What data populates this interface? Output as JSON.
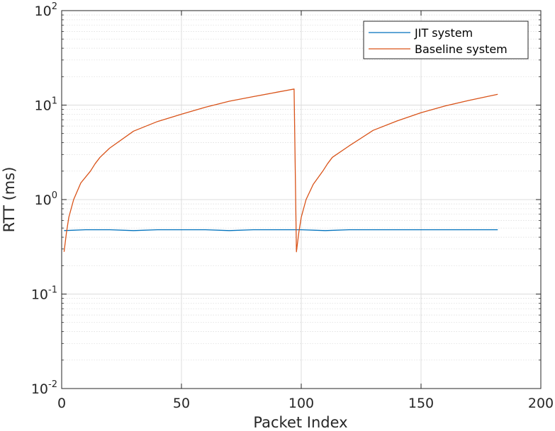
{
  "chart_data": {
    "type": "line",
    "xlabel": "Packet Index",
    "ylabel": "RTT (ms)",
    "xlim": [
      0,
      200
    ],
    "ylim": [
      0.01,
      100
    ],
    "yscale": "log",
    "grid": true,
    "minor_grid_y": true,
    "legend_position": "top-right",
    "x_ticks": [
      "0",
      "50",
      "100",
      "150",
      "200"
    ],
    "y_ticks": [
      {
        "base": "10",
        "exp": "-2",
        "value": 0.01
      },
      {
        "base": "10",
        "exp": "-1",
        "value": 0.1
      },
      {
        "base": "10",
        "exp": "0",
        "value": 1
      },
      {
        "base": "10",
        "exp": "1",
        "value": 10
      },
      {
        "base": "10",
        "exp": "2",
        "value": 100
      }
    ],
    "series": [
      {
        "name": "JIT system",
        "color": "#0072BD",
        "x": [
          1,
          10,
          20,
          30,
          40,
          50,
          60,
          70,
          80,
          90,
          100,
          110,
          120,
          130,
          140,
          150,
          160,
          170,
          182
        ],
        "y": [
          0.47,
          0.48,
          0.48,
          0.47,
          0.48,
          0.48,
          0.48,
          0.47,
          0.48,
          0.48,
          0.48,
          0.47,
          0.48,
          0.48,
          0.48,
          0.48,
          0.48,
          0.48,
          0.48
        ]
      },
      {
        "name": "Baseline system",
        "color": "#D95319",
        "x": [
          1,
          2,
          3,
          5,
          8,
          12,
          14,
          16,
          20,
          30,
          40,
          50,
          60,
          70,
          80,
          90,
          97,
          98,
          99,
          100,
          102,
          105,
          109,
          111,
          113,
          120,
          130,
          140,
          150,
          160,
          170,
          182
        ],
        "y": [
          0.28,
          0.45,
          0.65,
          1.0,
          1.5,
          2.0,
          2.4,
          2.8,
          3.5,
          5.3,
          6.7,
          8.0,
          9.5,
          11.0,
          12.3,
          13.7,
          14.8,
          0.28,
          0.45,
          0.65,
          1.0,
          1.45,
          2.0,
          2.4,
          2.8,
          3.7,
          5.4,
          6.8,
          8.3,
          9.8,
          11.2,
          13.0
        ]
      }
    ]
  }
}
